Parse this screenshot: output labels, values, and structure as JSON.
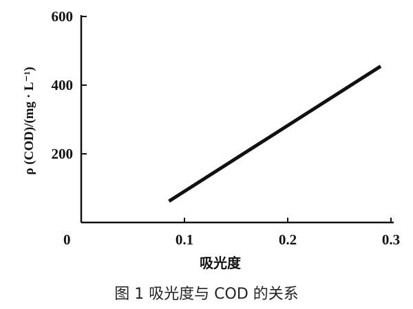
{
  "chart_data": {
    "type": "line",
    "xlabel": "吸光度",
    "ylabel": "ρ (COD)/(mg · L⁻¹)",
    "origin_label": "0",
    "xlim": [
      0,
      0.3
    ],
    "ylim": [
      0,
      600
    ],
    "x_ticks": [
      "0.1",
      "0.2",
      "0.3"
    ],
    "y_ticks": [
      "200",
      "400",
      "600"
    ],
    "grid": false,
    "series": [
      {
        "x": [
          0.085,
          0.29
        ],
        "y": [
          62,
          455
        ]
      }
    ]
  },
  "caption": "图 1   吸光度与 COD 的关系"
}
